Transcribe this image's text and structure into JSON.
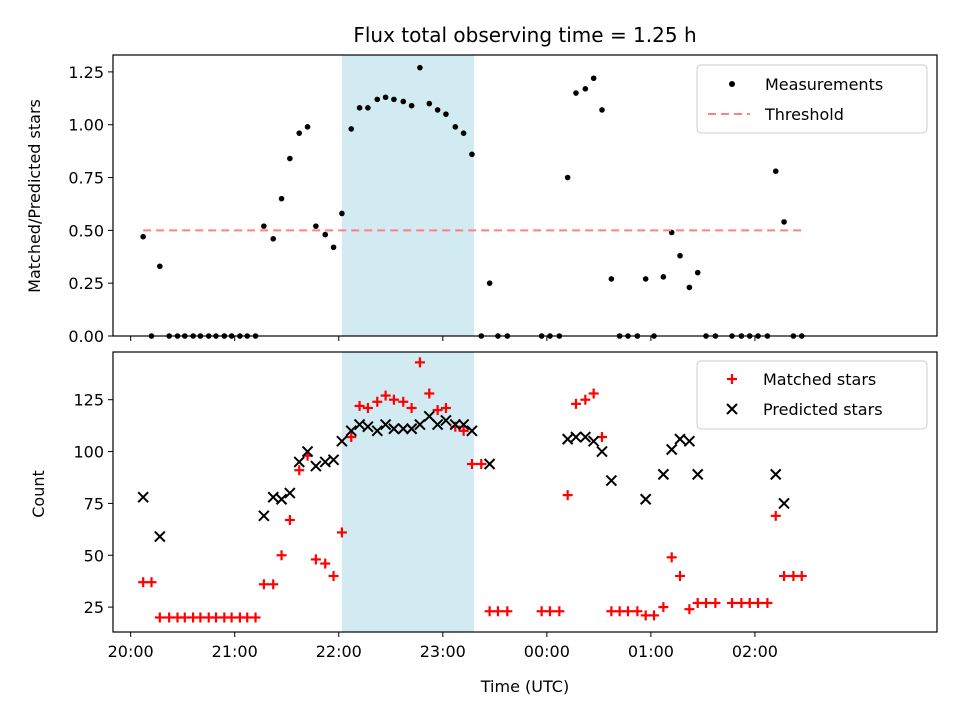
{
  "chart_data": [
    {
      "type": "scatter",
      "title": "Flux total observing time = 1.25 h",
      "ylabel": "Matched/Predicted stars",
      "xlabel": "",
      "x_unit": "hour of day (UTC), continuing past 24 into next day",
      "xlim": [
        19.83,
        27.75
      ],
      "ylim": [
        0,
        1.33
      ],
      "yticks": [
        0.0,
        0.25,
        0.5,
        0.75,
        1.0,
        1.25
      ],
      "ytick_labels": [
        "0.00",
        "0.25",
        "0.50",
        "0.75",
        "1.00",
        "1.25"
      ],
      "legend_position": "upper right",
      "highlight_band": {
        "x_start": 22.03,
        "x_end": 23.3,
        "color": "#add8e6"
      },
      "series": [
        {
          "name": "Measurements",
          "style": "dot",
          "color": "#000000",
          "points": [
            [
              20.12,
              0.47
            ],
            [
              20.2,
              0.0
            ],
            [
              20.28,
              0.33
            ],
            [
              20.37,
              0.0
            ],
            [
              20.45,
              0.0
            ],
            [
              20.52,
              0.0
            ],
            [
              20.6,
              0.0
            ],
            [
              20.67,
              0.0
            ],
            [
              20.75,
              0.0
            ],
            [
              20.82,
              0.0
            ],
            [
              20.9,
              0.0
            ],
            [
              20.97,
              0.0
            ],
            [
              21.05,
              0.0
            ],
            [
              21.12,
              0.0
            ],
            [
              21.2,
              0.0
            ],
            [
              21.28,
              0.52
            ],
            [
              21.37,
              0.46
            ],
            [
              21.45,
              0.65
            ],
            [
              21.53,
              0.84
            ],
            [
              21.62,
              0.96
            ],
            [
              21.7,
              0.99
            ],
            [
              21.78,
              0.52
            ],
            [
              21.87,
              0.48
            ],
            [
              21.95,
              0.42
            ],
            [
              22.03,
              0.58
            ],
            [
              22.12,
              0.98
            ],
            [
              22.2,
              1.08
            ],
            [
              22.28,
              1.08
            ],
            [
              22.37,
              1.12
            ],
            [
              22.45,
              1.13
            ],
            [
              22.53,
              1.12
            ],
            [
              22.62,
              1.11
            ],
            [
              22.7,
              1.09
            ],
            [
              22.78,
              1.27
            ],
            [
              22.87,
              1.1
            ],
            [
              22.95,
              1.07
            ],
            [
              23.03,
              1.05
            ],
            [
              23.12,
              0.99
            ],
            [
              23.2,
              0.96
            ],
            [
              23.28,
              0.86
            ],
            [
              23.37,
              0.0
            ],
            [
              23.45,
              0.25
            ],
            [
              23.53,
              0.0
            ],
            [
              23.62,
              0.0
            ],
            [
              23.95,
              0.0
            ],
            [
              24.03,
              0.0
            ],
            [
              24.12,
              0.0
            ],
            [
              24.2,
              0.75
            ],
            [
              24.28,
              1.15
            ],
            [
              24.37,
              1.17
            ],
            [
              24.45,
              1.22
            ],
            [
              24.53,
              1.07
            ],
            [
              24.62,
              0.27
            ],
            [
              24.7,
              0.0
            ],
            [
              24.78,
              0.0
            ],
            [
              24.87,
              0.0
            ],
            [
              24.95,
              0.27
            ],
            [
              25.03,
              0.0
            ],
            [
              25.12,
              0.28
            ],
            [
              25.2,
              0.49
            ],
            [
              25.28,
              0.38
            ],
            [
              25.37,
              0.23
            ],
            [
              25.45,
              0.3
            ],
            [
              25.53,
              0.0
            ],
            [
              25.62,
              0.0
            ],
            [
              25.78,
              0.0
            ],
            [
              25.87,
              0.0
            ],
            [
              25.95,
              0.0
            ],
            [
              26.03,
              0.0
            ],
            [
              26.12,
              0.0
            ],
            [
              26.2,
              0.78
            ],
            [
              26.28,
              0.54
            ],
            [
              26.37,
              0.0
            ],
            [
              26.45,
              0.0
            ]
          ]
        },
        {
          "name": "Threshold",
          "style": "dashed-line",
          "color": "#ff8080",
          "points": [
            [
              20.12,
              0.5
            ],
            [
              26.45,
              0.5
            ]
          ]
        }
      ]
    },
    {
      "type": "scatter",
      "title": "",
      "ylabel": "Count",
      "xlabel": "Time (UTC)",
      "x_unit": "hour of day (UTC), continuing past 24 into next day",
      "xlim": [
        19.83,
        27.75
      ],
      "ylim": [
        13,
        148
      ],
      "yticks": [
        25,
        50,
        75,
        100,
        125
      ],
      "ytick_labels": [
        "25",
        "50",
        "75",
        "100",
        "125"
      ],
      "xticks": [
        20,
        21,
        22,
        23,
        24,
        25,
        26
      ],
      "xtick_labels": [
        "20:00",
        "21:00",
        "22:00",
        "23:00",
        "00:00",
        "01:00",
        "02:00"
      ],
      "legend_position": "upper right",
      "highlight_band": {
        "x_start": 22.03,
        "x_end": 23.3,
        "color": "#add8e6"
      },
      "series": [
        {
          "name": "Matched stars",
          "style": "plus",
          "color": "#ff0000",
          "points": [
            [
              20.12,
              37
            ],
            [
              20.2,
              37
            ],
            [
              20.28,
              20
            ],
            [
              20.37,
              20
            ],
            [
              20.45,
              20
            ],
            [
              20.52,
              20
            ],
            [
              20.6,
              20
            ],
            [
              20.67,
              20
            ],
            [
              20.75,
              20
            ],
            [
              20.82,
              20
            ],
            [
              20.9,
              20
            ],
            [
              20.97,
              20
            ],
            [
              21.05,
              20
            ],
            [
              21.12,
              20
            ],
            [
              21.2,
              20
            ],
            [
              21.28,
              36
            ],
            [
              21.37,
              36
            ],
            [
              21.45,
              50
            ],
            [
              21.53,
              67
            ],
            [
              21.62,
              91
            ],
            [
              21.7,
              98
            ],
            [
              21.78,
              48
            ],
            [
              21.87,
              46
            ],
            [
              21.95,
              40
            ],
            [
              22.03,
              61
            ],
            [
              22.12,
              107
            ],
            [
              22.2,
              122
            ],
            [
              22.28,
              121
            ],
            [
              22.37,
              124
            ],
            [
              22.45,
              127
            ],
            [
              22.53,
              125
            ],
            [
              22.62,
              124
            ],
            [
              22.7,
              121
            ],
            [
              22.78,
              143
            ],
            [
              22.87,
              128
            ],
            [
              22.95,
              120
            ],
            [
              23.03,
              121
            ],
            [
              23.12,
              112
            ],
            [
              23.2,
              110
            ],
            [
              23.28,
              94
            ],
            [
              23.37,
              94
            ],
            [
              23.45,
              23
            ],
            [
              23.53,
              23
            ],
            [
              23.62,
              23
            ],
            [
              23.95,
              23
            ],
            [
              24.03,
              23
            ],
            [
              24.12,
              23
            ],
            [
              24.2,
              79
            ],
            [
              24.28,
              123
            ],
            [
              24.37,
              125
            ],
            [
              24.45,
              128
            ],
            [
              24.53,
              107
            ],
            [
              24.62,
              23
            ],
            [
              24.7,
              23
            ],
            [
              24.78,
              23
            ],
            [
              24.87,
              23
            ],
            [
              24.95,
              21
            ],
            [
              25.03,
              21
            ],
            [
              25.12,
              25
            ],
            [
              25.2,
              49
            ],
            [
              25.28,
              40
            ],
            [
              25.37,
              24
            ],
            [
              25.45,
              27
            ],
            [
              25.53,
              27
            ],
            [
              25.62,
              27
            ],
            [
              25.78,
              27
            ],
            [
              25.87,
              27
            ],
            [
              25.95,
              27
            ],
            [
              26.03,
              27
            ],
            [
              26.12,
              27
            ],
            [
              26.2,
              69
            ],
            [
              26.28,
              40
            ],
            [
              26.37,
              40
            ],
            [
              26.45,
              40
            ]
          ]
        },
        {
          "name": "Predicted stars",
          "style": "x",
          "color": "#000000",
          "points": [
            [
              20.12,
              78
            ],
            [
              20.28,
              59
            ],
            [
              21.28,
              69
            ],
            [
              21.37,
              78
            ],
            [
              21.45,
              77
            ],
            [
              21.53,
              80
            ],
            [
              21.62,
              95
            ],
            [
              21.7,
              100
            ],
            [
              21.78,
              93
            ],
            [
              21.87,
              95
            ],
            [
              21.95,
              96
            ],
            [
              22.03,
              105
            ],
            [
              22.12,
              110
            ],
            [
              22.2,
              113
            ],
            [
              22.28,
              112
            ],
            [
              22.37,
              110
            ],
            [
              22.45,
              113
            ],
            [
              22.53,
              111
            ],
            [
              22.62,
              111
            ],
            [
              22.7,
              111
            ],
            [
              22.78,
              113
            ],
            [
              22.87,
              117
            ],
            [
              22.95,
              113
            ],
            [
              23.03,
              115
            ],
            [
              23.12,
              113
            ],
            [
              23.2,
              113
            ],
            [
              23.28,
              110
            ],
            [
              23.45,
              94
            ],
            [
              24.2,
              106
            ],
            [
              24.28,
              107
            ],
            [
              24.37,
              107
            ],
            [
              24.45,
              105
            ],
            [
              24.53,
              100
            ],
            [
              24.62,
              86
            ],
            [
              24.95,
              77
            ],
            [
              25.12,
              89
            ],
            [
              25.2,
              101
            ],
            [
              25.28,
              106
            ],
            [
              25.37,
              105
            ],
            [
              25.45,
              89
            ],
            [
              26.2,
              89
            ],
            [
              26.28,
              75
            ]
          ]
        }
      ]
    }
  ]
}
